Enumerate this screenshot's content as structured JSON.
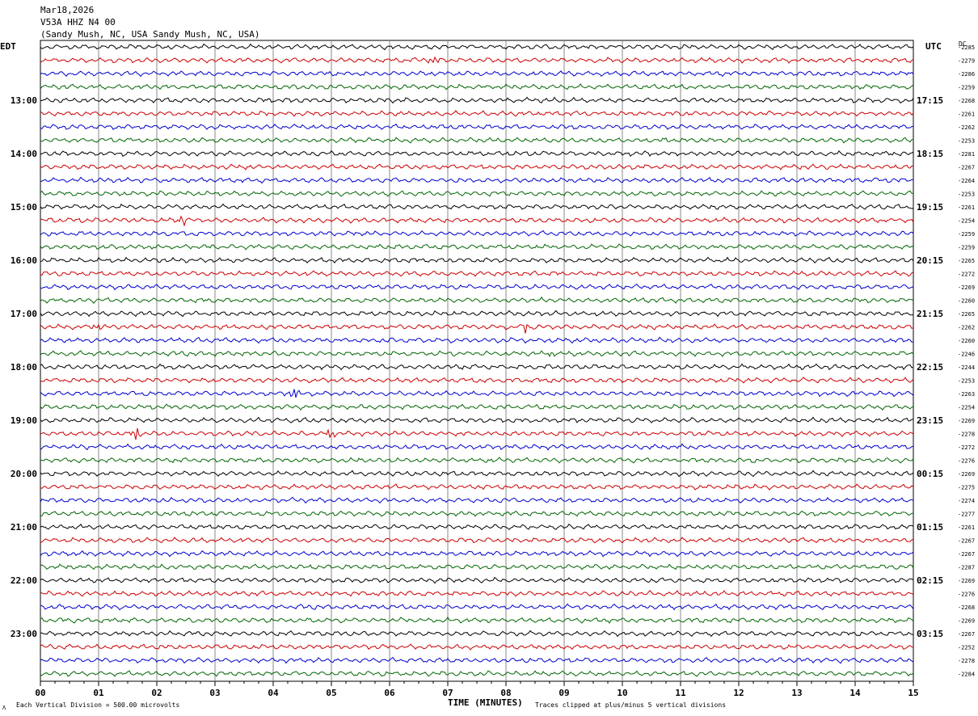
{
  "header": {
    "date": "Mar18,2026",
    "station": "V53A HHZ N4 00",
    "location": "(Sandy Mush, NC, USA Sandy Mush, NC, USA)"
  },
  "left_zone_label": "EDT",
  "right_zone_label": "UTC",
  "dc_label": "DC",
  "footer": {
    "scale_note": "Each Vertical Division =  500.00 microvolts",
    "clip_note": "Traces clipped at plus/minus 5 vertical divisions",
    "corner_mark": "Λ"
  },
  "colors": {
    "trace_cycle": [
      "#000000",
      "#cc0000",
      "#0000cc",
      "#006600"
    ],
    "grid": "#888888"
  },
  "chart_data": {
    "type": "line",
    "xlabel": "TIME (MINUTES)",
    "x_ticks": [
      "00",
      "01",
      "02",
      "03",
      "04",
      "05",
      "06",
      "07",
      "08",
      "09",
      "10",
      "11",
      "12",
      "13",
      "14",
      "15"
    ],
    "x_range": [
      0,
      15
    ],
    "trace_count": 48,
    "traces_per_hour": 4,
    "left_hour_labels": [
      "13:00",
      "14:00",
      "15:00",
      "16:00",
      "17:00",
      "18:00",
      "19:00",
      "20:00",
      "21:00",
      "22:00",
      "23:00"
    ],
    "right_hour_labels": [
      "17:15",
      "18:15",
      "19:15",
      "20:15",
      "21:15",
      "22:15",
      "23:15",
      "00:15",
      "01:15",
      "02:15",
      "03:15"
    ],
    "dc_offsets": [
      -2285,
      -2279,
      -2286,
      -2259,
      -2268,
      -2261,
      -2262,
      -2253,
      -2281,
      -2267,
      -2264,
      -2253,
      -2261,
      -2254,
      -2259,
      -2259,
      -2265,
      -2272,
      -2269,
      -2260,
      -2265,
      -2262,
      -2260,
      -2246,
      -2244,
      -2253,
      -2263,
      -2254,
      -2269,
      -2278,
      -2272,
      -2276,
      -2269,
      -2275,
      -2274,
      -2277,
      -2261,
      -2267,
      -2267,
      -2287,
      -2269,
      -2276,
      -2268,
      -2269,
      -2267,
      -2252,
      -2278,
      -2284
    ],
    "events": [
      {
        "trace": 1,
        "minute": 6.7,
        "amp": 1.0
      },
      {
        "trace": 13,
        "minute": 2.4,
        "amp": 0.9
      },
      {
        "trace": 21,
        "minute": 0.95,
        "amp": 0.6
      },
      {
        "trace": 21,
        "minute": 8.3,
        "amp": 0.9
      },
      {
        "trace": 23,
        "minute": 8.7,
        "amp": 0.5
      },
      {
        "trace": 26,
        "minute": 4.3,
        "amp": 1.2
      },
      {
        "trace": 29,
        "minute": 1.6,
        "amp": 1.0
      },
      {
        "trace": 29,
        "minute": 4.95,
        "amp": 1.0
      }
    ]
  }
}
